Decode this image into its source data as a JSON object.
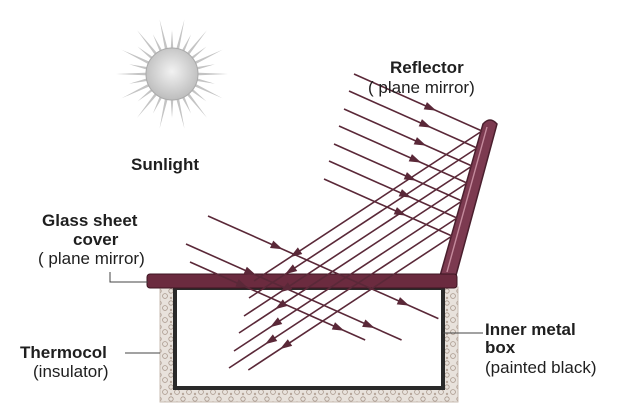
{
  "labels": {
    "sunlight": "Sunlight",
    "reflector": "Reflector",
    "reflector_note": "( plane mirror)",
    "glass_line1": "Glass sheet",
    "glass_line2": "cover",
    "glass_note": "( plane mirror)",
    "thermocol": "Thermocol",
    "thermocol_note": "(insulator)",
    "inner_line1": "Inner metal",
    "inner_line2": "box",
    "inner_note": "(painted black)"
  },
  "colors": {
    "ray": "#5a2838",
    "glass": "#6b2b3f",
    "reflector": "#7c3a50",
    "box_outline": "#2a2a2a",
    "sun": "#c8c8c8",
    "insulation": "#e4ddd6"
  },
  "icons": {
    "sun": "sun-icon"
  }
}
